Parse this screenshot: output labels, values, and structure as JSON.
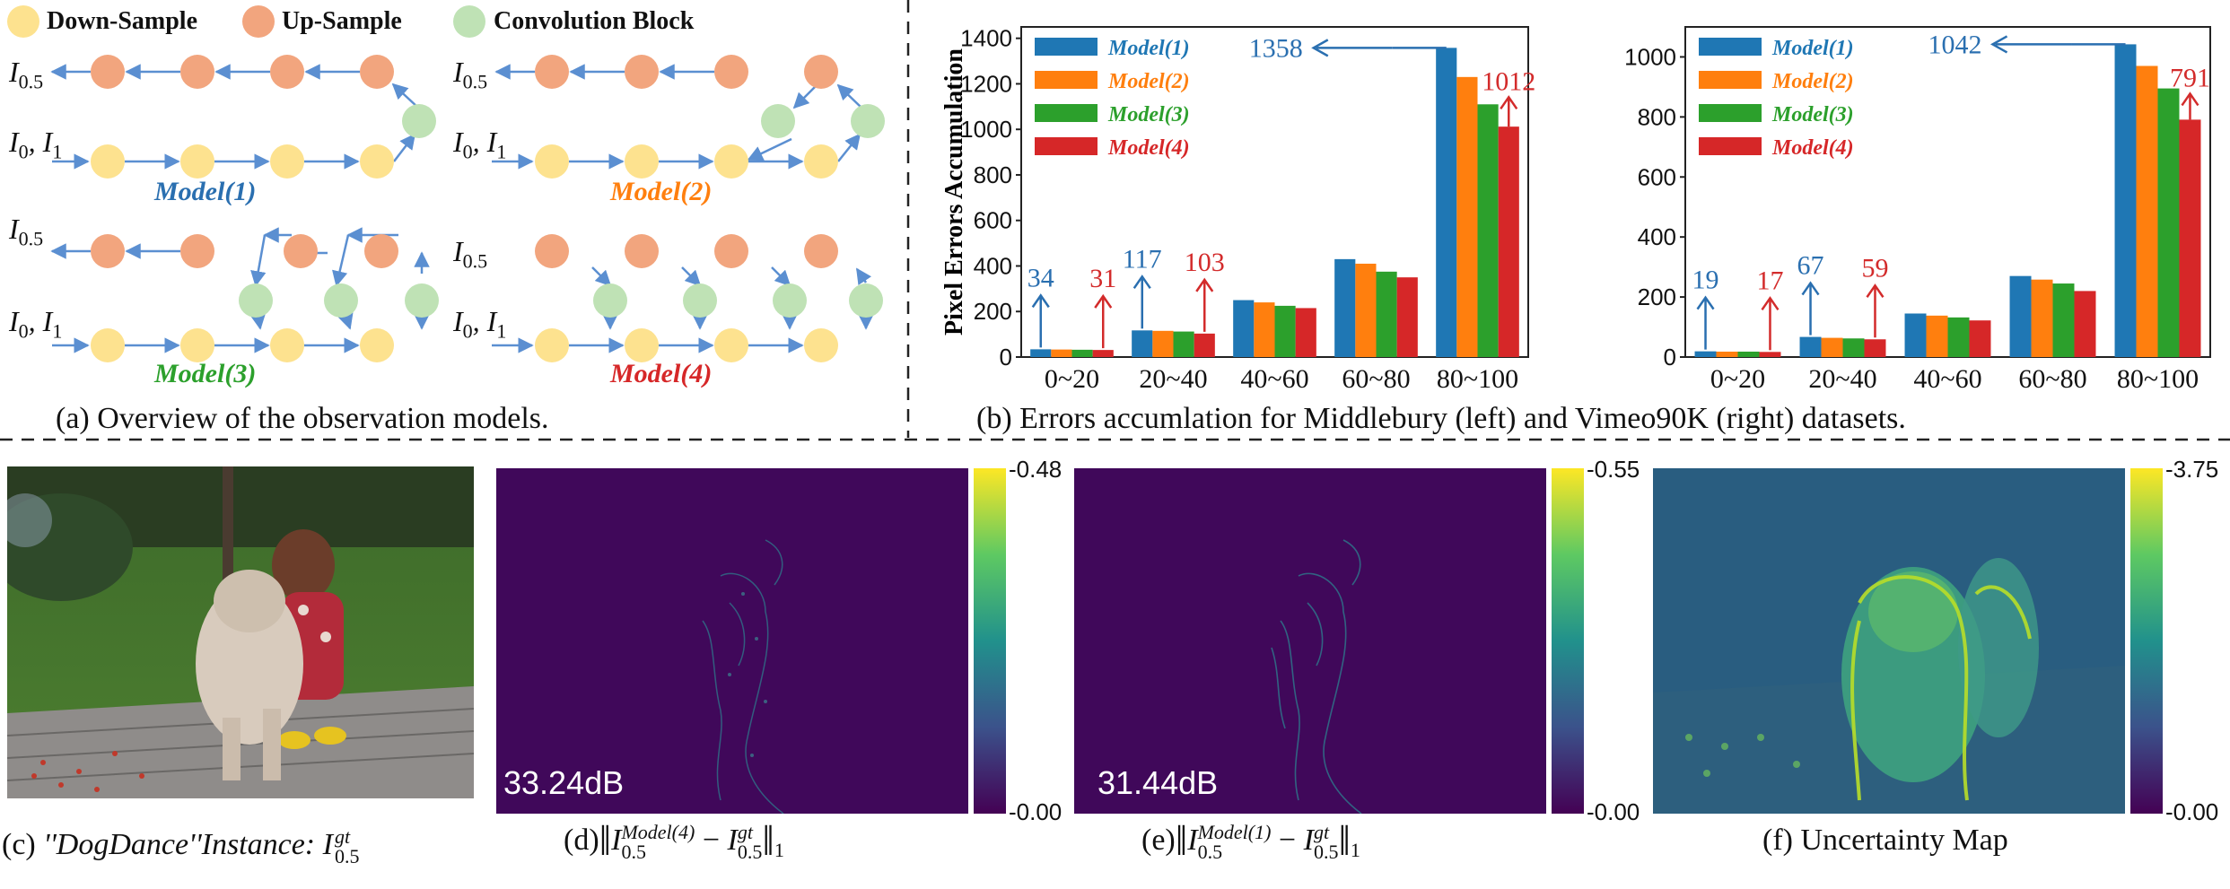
{
  "legend": {
    "down": {
      "label": "Down-Sample",
      "color": "#fde28f"
    },
    "up": {
      "label": "Up-Sample",
      "color": "#f2a57e"
    },
    "conv": {
      "label": "Convolution Block",
      "color": "#bfe2b5"
    }
  },
  "models_panel": {
    "input_half": "I0.5",
    "input_pair": "I0, I1",
    "models": [
      {
        "label": "Model(1)",
        "color": "#2a6fb0"
      },
      {
        "label": "Model(2)",
        "color": "#ff7f0e"
      },
      {
        "label": "Model(3)",
        "color": "#2ca02c"
      },
      {
        "label": "Model(4)",
        "color": "#d62728"
      }
    ],
    "caption": "(a) Overview of the observation models."
  },
  "chart_data": [
    {
      "type": "bar",
      "title": "Middlebury",
      "ylabel": "Pixel Errors  Accumulation",
      "categories": [
        "0~20",
        "20~40",
        "40~60",
        "60~80",
        "80~100"
      ],
      "ylim": [
        0,
        1450
      ],
      "yticks": [
        0,
        200,
        400,
        600,
        800,
        1000,
        1200,
        1400
      ],
      "series": [
        {
          "name": "Model(1)",
          "color": "#1f77b4",
          "values": [
            34,
            117,
            250,
            430,
            1358
          ]
        },
        {
          "name": "Model(2)",
          "color": "#ff7f0e",
          "values": [
            33,
            115,
            240,
            410,
            1230
          ]
        },
        {
          "name": "Model(3)",
          "color": "#2ca02c",
          "values": [
            32,
            112,
            225,
            375,
            1110
          ]
        },
        {
          "name": "Model(4)",
          "color": "#d62728",
          "values": [
            31,
            103,
            215,
            350,
            1012
          ]
        }
      ],
      "annotations": [
        {
          "text": "34",
          "series": 0,
          "category": 0
        },
        {
          "text": "31",
          "series": 3,
          "category": 0
        },
        {
          "text": "117",
          "series": 0,
          "category": 1
        },
        {
          "text": "103",
          "series": 3,
          "category": 1
        },
        {
          "text": "1358",
          "series": 0,
          "category": 4
        },
        {
          "text": "1012",
          "series": 3,
          "category": 4
        }
      ]
    },
    {
      "type": "bar",
      "title": "Vimeo90K",
      "ylabel": "",
      "categories": [
        "0~20",
        "20~40",
        "40~60",
        "60~80",
        "80~100"
      ],
      "ylim": [
        0,
        1100
      ],
      "yticks": [
        0,
        200,
        400,
        600,
        800,
        1000
      ],
      "series": [
        {
          "name": "Model(1)",
          "color": "#1f77b4",
          "values": [
            19,
            67,
            145,
            270,
            1042
          ]
        },
        {
          "name": "Model(2)",
          "color": "#ff7f0e",
          "values": [
            18,
            64,
            138,
            258,
            970
          ]
        },
        {
          "name": "Model(3)",
          "color": "#2ca02c",
          "values": [
            18,
            62,
            132,
            245,
            895
          ]
        },
        {
          "name": "Model(4)",
          "color": "#d62728",
          "values": [
            17,
            59,
            122,
            220,
            791
          ]
        }
      ],
      "annotations": [
        {
          "text": "19",
          "series": 0,
          "category": 0
        },
        {
          "text": "17",
          "series": 3,
          "category": 0
        },
        {
          "text": "67",
          "series": 0,
          "category": 1
        },
        {
          "text": "59",
          "series": 3,
          "category": 1
        },
        {
          "text": "1042",
          "series": 0,
          "category": 4
        },
        {
          "text": "791",
          "series": 3,
          "category": 4
        }
      ]
    }
  ],
  "chart_caption": "(b) Errors accumlation for Middlebury (left) and Vimeo90K (right) datasets.",
  "images": {
    "c": {
      "caption_prefix": "(c)",
      "caption_name": "''DogDance''Instance:",
      "caption_var": "I",
      "sup": "gt",
      "sub": "0.5"
    },
    "d": {
      "psnr": "33.24dB",
      "cbar_max": "-0.48",
      "cbar_min": "-0.00",
      "caption_prefix": "(d)",
      "sup": "Model(4)"
    },
    "e": {
      "psnr": "31.44dB",
      "cbar_max": "-0.55",
      "cbar_min": "-0.00",
      "caption_prefix": "(e)",
      "sup": "Model(1)"
    },
    "f": {
      "cbar_max": "-3.75",
      "cbar_min": "-0.00",
      "caption": "(f) Uncertainty Map"
    }
  },
  "norm_formula": {
    "var": "I",
    "sub": "0.5",
    "gt": "gt",
    "minus": "−",
    "norm_sub": "1"
  }
}
